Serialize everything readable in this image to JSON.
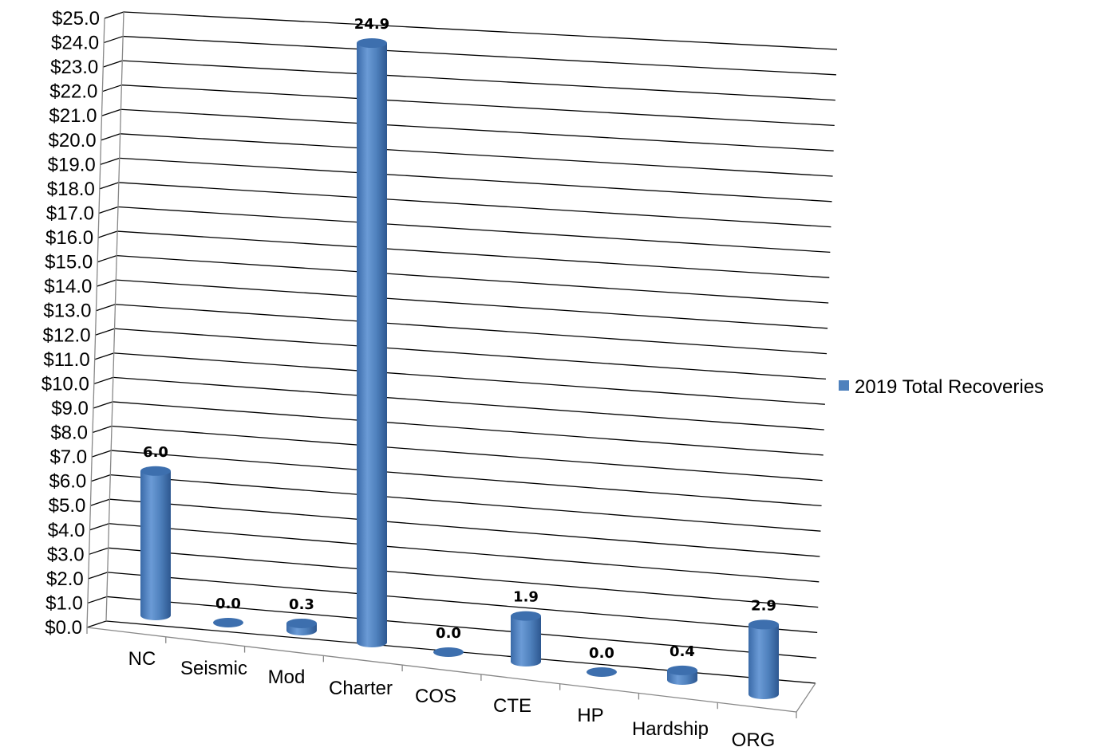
{
  "chart_data": {
    "type": "bar",
    "variant": "3d-cylinder",
    "categories": [
      "NC",
      "Seismic",
      "Mod",
      "Charter",
      "COS",
      "CTE",
      "HP",
      "Hardship",
      "ORG"
    ],
    "series": [
      {
        "name": "2019 Total Recoveries",
        "values": [
          6.0,
          0.0,
          0.3,
          24.9,
          0.0,
          1.9,
          0.0,
          0.4,
          2.9
        ]
      }
    ],
    "data_labels": [
      "6.0",
      "0.0",
      "0.3",
      "24.9",
      "0.0",
      "1.9",
      "0.0",
      "0.4",
      "2.9"
    ],
    "title": "",
    "xlabel": "",
    "ylabel": "",
    "ylim": [
      0,
      25
    ],
    "y_ticks": [
      "$0.0",
      "$1.0",
      "$2.0",
      "$3.0",
      "$4.0",
      "$5.0",
      "$6.0",
      "$7.0",
      "$8.0",
      "$9.0",
      "$10.0",
      "$11.0",
      "$12.0",
      "$13.0",
      "$14.0",
      "$15.0",
      "$16.0",
      "$17.0",
      "$18.0",
      "$19.0",
      "$20.0",
      "$21.0",
      "$22.0",
      "$23.0",
      "$24.0",
      "$25.0"
    ],
    "grid": true,
    "legend_position": "right",
    "colors": {
      "bar": "#4f81bd",
      "bar_dark": "#2f5b94",
      "bar_light": "#7aa3d6",
      "top": "#3d6fae",
      "grid": "#000000",
      "axis": "#888888"
    }
  }
}
